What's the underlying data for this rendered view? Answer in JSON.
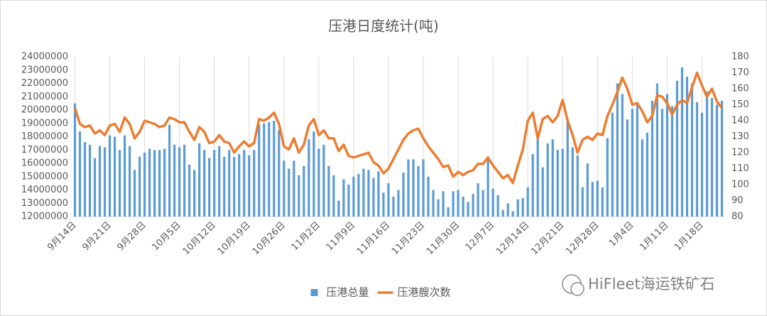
{
  "chart_data": {
    "type": "bar",
    "title": "压港日度统计(吨)",
    "categories": [
      "9月14日",
      null,
      null,
      null,
      null,
      null,
      null,
      "9月21日",
      null,
      null,
      null,
      null,
      null,
      null,
      "9月28日",
      null,
      null,
      null,
      null,
      null,
      null,
      "10月5日",
      null,
      null,
      null,
      null,
      null,
      null,
      "10月12日",
      null,
      null,
      null,
      null,
      null,
      null,
      "10月19日",
      null,
      null,
      null,
      null,
      null,
      null,
      "10月26日",
      null,
      null,
      null,
      null,
      null,
      null,
      "11月2日",
      null,
      null,
      null,
      null,
      null,
      null,
      "11月9日",
      null,
      null,
      null,
      null,
      null,
      null,
      "11月16日",
      null,
      null,
      null,
      null,
      null,
      null,
      "11月23日",
      null,
      null,
      null,
      null,
      null,
      null,
      "11月30日",
      null,
      null,
      null,
      null,
      null,
      null,
      "12月7日",
      null,
      null,
      null,
      null,
      null,
      null,
      "12月14日",
      null,
      null,
      null,
      null,
      null,
      null,
      "12月21日",
      null,
      null,
      null,
      null,
      null,
      null,
      "12月28日",
      null,
      null,
      null,
      null,
      null,
      null,
      "1月4日",
      null,
      null,
      null,
      null,
      null,
      null,
      "1月11日",
      null,
      null,
      null,
      null,
      null,
      null,
      "1月18日",
      null,
      null,
      null,
      null
    ],
    "series": [
      {
        "name": "压港总量",
        "color": "#5b9bd5",
        "type": "bar",
        "axis": "y",
        "values": [
          20500000,
          18400000,
          17600000,
          17400000,
          16400000,
          17300000,
          17200000,
          18100000,
          18000000,
          17000000,
          18100000,
          17300000,
          15500000,
          16500000,
          16800000,
          17100000,
          17000000,
          17000000,
          17100000,
          18900000,
          17400000,
          17200000,
          17400000,
          15900000,
          15500000,
          17500000,
          17000000,
          16400000,
          17000000,
          17300000,
          16500000,
          17000000,
          16500000,
          16700000,
          17000000,
          16600000,
          17000000,
          18900000,
          19000000,
          19100000,
          19200000,
          18500000,
          16200000,
          15600000,
          16200000,
          15100000,
          15800000,
          17800000,
          18400000,
          17100000,
          17400000,
          15800000,
          15100000,
          13200000,
          14800000,
          14400000,
          15000000,
          15200000,
          15600000,
          15500000,
          14900000,
          15400000,
          13800000,
          14500000,
          13500000,
          14000000,
          15300000,
          16300000,
          16300000,
          15800000,
          16300000,
          15000000,
          14000000,
          13300000,
          13900000,
          12700000,
          13900000,
          14000000,
          13500000,
          13100000,
          13700000,
          14500000,
          14000000,
          16400000,
          14100000,
          13600000,
          12500000,
          13000000,
          12400000,
          13300000,
          13400000,
          14200000,
          16700000,
          17900000,
          15700000,
          17500000,
          17800000,
          17000000,
          17100000,
          19100000,
          17200000,
          16600000,
          14200000,
          16000000,
          14600000,
          14700000,
          14200000,
          17900000,
          19800000,
          22000000,
          21200000,
          19300000,
          20100000,
          20600000,
          17800000,
          18300000,
          20700000,
          22000000,
          20100000,
          21200000,
          20300000,
          22200000,
          23200000,
          22500000,
          22000000,
          20600000,
          19800000,
          21400000,
          20900000,
          20400000,
          20700000
        ]
      },
      {
        "name": "压港艘次数",
        "color": "#ed7d31",
        "type": "line",
        "axis": "y2",
        "values": [
          148,
          138,
          136,
          137,
          132,
          134,
          131,
          137,
          138,
          133,
          142,
          138,
          129,
          133,
          140,
          139,
          138,
          136,
          137,
          142,
          141,
          139,
          139,
          133,
          128,
          136,
          133,
          126,
          127,
          131,
          127,
          126,
          120,
          124,
          127,
          124,
          126,
          141,
          140,
          142,
          145,
          138,
          124,
          122,
          129,
          120,
          125,
          137,
          141,
          131,
          134,
          129,
          129,
          121,
          125,
          118,
          117,
          118,
          119,
          120,
          114,
          112,
          107,
          110,
          116,
          122,
          128,
          132,
          134,
          135,
          129,
          124,
          120,
          116,
          111,
          112,
          105,
          108,
          106,
          108,
          109,
          113,
          113,
          117,
          112,
          108,
          104,
          106,
          101,
          112,
          122,
          140,
          145,
          129,
          141,
          143,
          139,
          143,
          153,
          140,
          131,
          120,
          128,
          130,
          128,
          132,
          131,
          143,
          150,
          158,
          167,
          160,
          150,
          151,
          146,
          139,
          143,
          156,
          155,
          151,
          144,
          150,
          153,
          151,
          161,
          170,
          162,
          155,
          160,
          152,
          148
        ]
      }
    ],
    "ylim": [
      12000000,
      24000000
    ],
    "yticks": [
      12000000,
      13000000,
      14000000,
      15000000,
      16000000,
      17000000,
      18000000,
      19000000,
      20000000,
      21000000,
      22000000,
      23000000,
      24000000
    ],
    "y2lim": [
      80,
      180
    ],
    "y2ticks": [
      80,
      90,
      100,
      110,
      120,
      130,
      140,
      150,
      160,
      170,
      180
    ],
    "grid": true,
    "legend": "bottom",
    "watermark": "HiFleet海运铁矿石"
  }
}
